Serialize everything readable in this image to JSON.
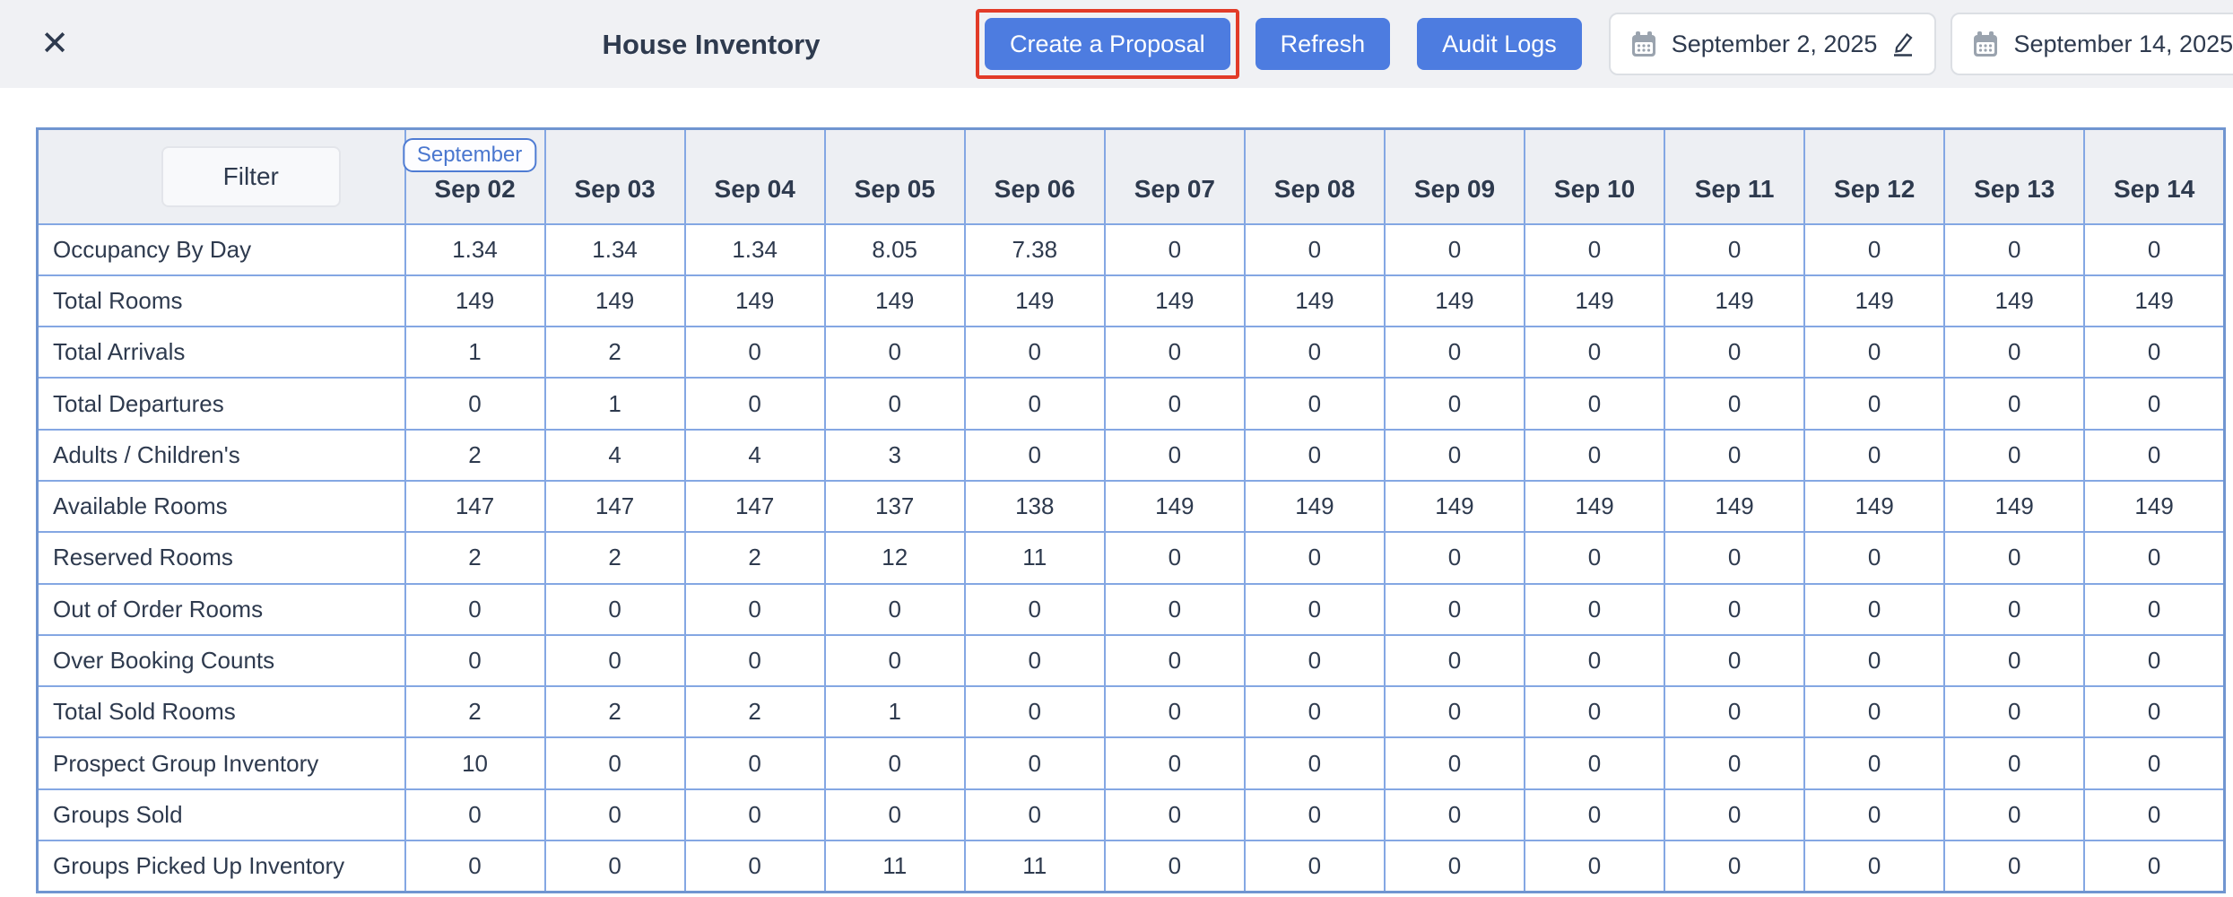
{
  "app": {
    "title": "House Inventory"
  },
  "icons": {
    "close_glyph": "✕",
    "calendar": "calendar-icon",
    "edit": "pencil-icon"
  },
  "toolbar": {
    "create_proposal_label": "Create a Proposal",
    "refresh_label": "Refresh",
    "audit_logs_label": "Audit Logs",
    "start_date": "September 2, 2025",
    "end_date": "September 14, 2025"
  },
  "colors": {
    "accent_blue": "#4d7ce0",
    "highlight_red": "#e23b28",
    "table_border": "#84a7e3",
    "header_cell_bg": "#edeff3",
    "text_dark": "#2e3a4e",
    "badge_blue": "#4a77cf"
  },
  "table": {
    "filter_label": "Filter",
    "month_badge": "September",
    "columns": [
      "Sep 02",
      "Sep 03",
      "Sep 04",
      "Sep 05",
      "Sep 06",
      "Sep 07",
      "Sep 08",
      "Sep 09",
      "Sep 10",
      "Sep 11",
      "Sep 12",
      "Sep 13",
      "Sep 14"
    ],
    "rows": [
      {
        "label": "Occupancy By Day",
        "values": [
          "1.34",
          "1.34",
          "1.34",
          "8.05",
          "7.38",
          "0",
          "0",
          "0",
          "0",
          "0",
          "0",
          "0",
          "0"
        ]
      },
      {
        "label": "Total Rooms",
        "values": [
          "149",
          "149",
          "149",
          "149",
          "149",
          "149",
          "149",
          "149",
          "149",
          "149",
          "149",
          "149",
          "149"
        ]
      },
      {
        "label": "Total Arrivals",
        "values": [
          "1",
          "2",
          "0",
          "0",
          "0",
          "0",
          "0",
          "0",
          "0",
          "0",
          "0",
          "0",
          "0"
        ]
      },
      {
        "label": "Total Departures",
        "values": [
          "0",
          "1",
          "0",
          "0",
          "0",
          "0",
          "0",
          "0",
          "0",
          "0",
          "0",
          "0",
          "0"
        ]
      },
      {
        "label": "Adults / Children's",
        "values": [
          "2",
          "4",
          "4",
          "3",
          "0",
          "0",
          "0",
          "0",
          "0",
          "0",
          "0",
          "0",
          "0"
        ]
      },
      {
        "label": "Available Rooms",
        "values": [
          "147",
          "147",
          "147",
          "137",
          "138",
          "149",
          "149",
          "149",
          "149",
          "149",
          "149",
          "149",
          "149"
        ]
      },
      {
        "label": "Reserved Rooms",
        "values": [
          "2",
          "2",
          "2",
          "12",
          "11",
          "0",
          "0",
          "0",
          "0",
          "0",
          "0",
          "0",
          "0"
        ]
      },
      {
        "label": "Out of Order Rooms",
        "values": [
          "0",
          "0",
          "0",
          "0",
          "0",
          "0",
          "0",
          "0",
          "0",
          "0",
          "0",
          "0",
          "0"
        ]
      },
      {
        "label": "Over Booking Counts",
        "values": [
          "0",
          "0",
          "0",
          "0",
          "0",
          "0",
          "0",
          "0",
          "0",
          "0",
          "0",
          "0",
          "0"
        ]
      },
      {
        "label": "Total Sold Rooms",
        "values": [
          "2",
          "2",
          "2",
          "1",
          "0",
          "0",
          "0",
          "0",
          "0",
          "0",
          "0",
          "0",
          "0"
        ]
      },
      {
        "label": "Prospect Group Inventory",
        "values": [
          "10",
          "0",
          "0",
          "0",
          "0",
          "0",
          "0",
          "0",
          "0",
          "0",
          "0",
          "0",
          "0"
        ]
      },
      {
        "label": "Groups Sold",
        "values": [
          "0",
          "0",
          "0",
          "0",
          "0",
          "0",
          "0",
          "0",
          "0",
          "0",
          "0",
          "0",
          "0"
        ]
      },
      {
        "label": "Groups Picked Up Inventory",
        "values": [
          "0",
          "0",
          "0",
          "11",
          "11",
          "0",
          "0",
          "0",
          "0",
          "0",
          "0",
          "0",
          "0"
        ]
      }
    ]
  }
}
